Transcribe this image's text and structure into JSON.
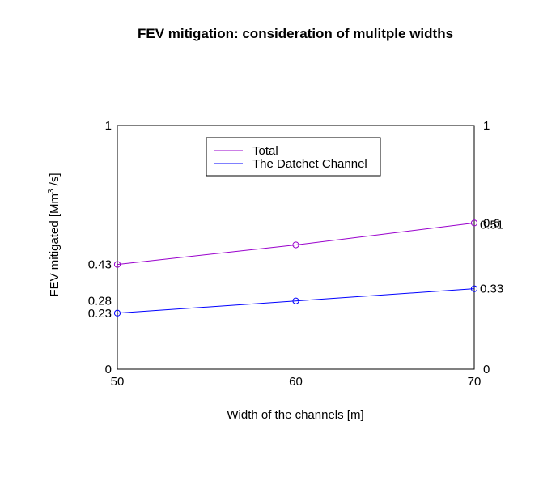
{
  "chart_data": {
    "type": "line",
    "title": "FEV mitigation: consideration of mulitple widths",
    "xlabel": "Width of the channels [m]",
    "ylabel_main": "FEV mitigated [Mm",
    "ylabel_sup": "3",
    "ylabel_tail": " /s]",
    "x": [
      50,
      60,
      70
    ],
    "xlim": [
      50,
      70
    ],
    "ylim": [
      0,
      1
    ],
    "x_ticks": [
      "50",
      "60",
      "70"
    ],
    "y_left_ticks": [
      {
        "value": 0,
        "label": "0"
      },
      {
        "value": 1,
        "label": "1"
      },
      {
        "value": 0.43,
        "label": "0.43"
      },
      {
        "value": 0.28,
        "label": "0.28"
      },
      {
        "value": 0.23,
        "label": "0.23"
      }
    ],
    "y_right_ticks": [
      {
        "value": 0,
        "label": "0"
      },
      {
        "value": 1,
        "label": "1"
      },
      {
        "value": 0.6,
        "label": "0.6"
      },
      {
        "value": 0.51,
        "label": "0.51"
      },
      {
        "value": 0.33,
        "label": "0.33"
      }
    ],
    "series": [
      {
        "name": "Total",
        "color": "#9900cc",
        "values": [
          0.43,
          0.51,
          0.6
        ]
      },
      {
        "name": "The Datchet Channel",
        "color": "#0000ff",
        "values": [
          0.23,
          0.28,
          0.33
        ]
      }
    ],
    "legend_position": "top-center",
    "grid": false,
    "marker": "open-circle"
  }
}
